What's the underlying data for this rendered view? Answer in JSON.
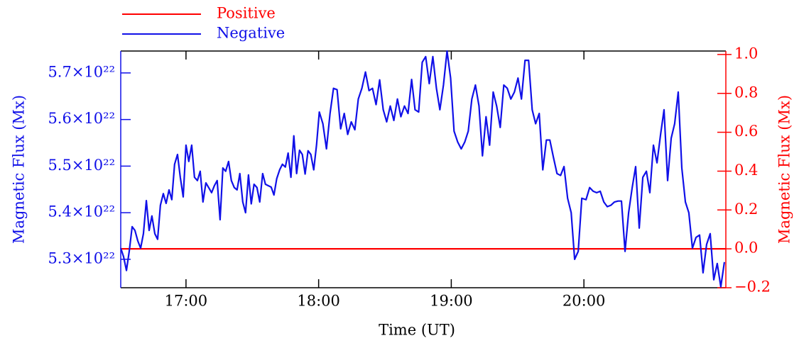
{
  "chart_data": {
    "type": "line",
    "x_label": "Time (UT)",
    "y_label": "Magnetic Flux (Mx)",
    "y2_label": "Magnetic Flux (Mx)",
    "xlim": [
      16.508,
      21.07
    ],
    "xticks": [
      {
        "value": 17,
        "label": "17:00"
      },
      {
        "value": 18,
        "label": "18:00"
      },
      {
        "value": 19,
        "label": "19:00"
      },
      {
        "value": 20,
        "label": "20:00"
      }
    ],
    "ylim": [
      5.239e+22,
      5.747e+22
    ],
    "yticks": [
      {
        "value": 5.3e+22,
        "label": "5.3×10²²"
      },
      {
        "value": 5.4e+22,
        "label": "5.4×10²²"
      },
      {
        "value": 5.5e+22,
        "label": "5.5×10²²"
      },
      {
        "value": 5.6e+22,
        "label": "5.6×10²²"
      },
      {
        "value": 5.7e+22,
        "label": "5.7×10²²"
      }
    ],
    "y2lim": [
      -0.2,
      1.018
    ],
    "y2ticks": [
      {
        "value": -0.2,
        "label": "−0.2"
      },
      {
        "value": 0,
        "label": "0.0"
      },
      {
        "value": 0.2,
        "label": "0.2"
      },
      {
        "value": 0.4,
        "label": "0.4"
      },
      {
        "value": 0.6,
        "label": "0.6"
      },
      {
        "value": 0.8,
        "label": "0.8"
      },
      {
        "value": 1,
        "label": "1.0"
      }
    ],
    "legend": "top-left",
    "x": [
      16.508,
      16.529,
      16.551,
      16.572,
      16.594,
      16.615,
      16.636,
      16.658,
      16.679,
      16.701,
      16.722,
      16.743,
      16.765,
      16.786,
      16.807,
      16.829,
      16.85,
      16.872,
      16.893,
      16.914,
      16.936,
      16.957,
      16.979,
      17.0,
      17.021,
      17.043,
      17.064,
      17.086,
      17.107,
      17.128,
      17.15,
      17.171,
      17.193,
      17.214,
      17.235,
      17.257,
      17.278,
      17.299,
      17.321,
      17.342,
      17.364,
      17.385,
      17.406,
      17.428,
      17.449,
      17.471,
      17.492,
      17.513,
      17.535,
      17.556,
      17.578,
      17.599,
      17.62,
      17.642,
      17.663,
      17.684,
      17.706,
      17.727,
      17.749,
      17.77,
      17.791,
      17.813,
      17.834,
      17.856,
      17.877,
      17.898,
      17.92,
      17.941,
      17.963,
      17.984,
      18.005,
      18.032,
      18.059,
      18.086,
      18.112,
      18.139,
      18.166,
      18.193,
      18.219,
      18.246,
      18.273,
      18.299,
      18.326,
      18.353,
      18.38,
      18.406,
      18.433,
      18.46,
      18.487,
      18.513,
      18.54,
      18.567,
      18.594,
      18.62,
      18.647,
      18.674,
      18.701,
      18.727,
      18.754,
      18.781,
      18.807,
      18.834,
      18.861,
      18.888,
      18.914,
      18.941,
      18.968,
      18.995,
      19.021,
      19.048,
      19.075,
      19.102,
      19.128,
      19.155,
      19.182,
      19.209,
      19.235,
      19.262,
      19.289,
      19.316,
      19.342,
      19.369,
      19.396,
      19.422,
      19.449,
      19.476,
      19.503,
      19.529,
      19.556,
      19.583,
      19.61,
      19.636,
      19.663,
      19.69,
      19.717,
      19.743,
      19.77,
      19.797,
      19.824,
      19.85,
      19.877,
      19.904,
      19.93,
      19.957,
      19.984,
      20.016,
      20.043,
      20.07,
      20.096,
      20.123,
      20.15,
      20.176,
      20.203,
      20.23,
      20.257,
      20.283,
      20.31,
      20.337,
      20.364,
      20.39,
      20.417,
      20.444,
      20.471,
      20.497,
      20.524,
      20.551,
      20.578,
      20.604,
      20.631,
      20.658,
      20.684,
      20.711,
      20.738,
      20.765,
      20.791,
      20.818,
      20.845,
      20.872,
      20.898,
      20.925,
      20.952,
      20.979,
      21.005,
      21.032,
      21.059
    ],
    "series": [
      {
        "name": "Positive",
        "color": "#ff0000",
        "axis": "y2",
        "x": [
          16.508,
          21.07
        ],
        "values": [
          0,
          0
        ]
      },
      {
        "name": "Negative",
        "color": "#1010e8",
        "values": [
          5.324e+22,
          5.306e+22,
          5.276e+22,
          5.317e+22,
          5.37e+22,
          5.362e+22,
          5.34e+22,
          5.324e+22,
          5.355e+22,
          5.426e+22,
          5.362e+22,
          5.393e+22,
          5.355e+22,
          5.343e+22,
          5.416e+22,
          5.441e+22,
          5.42e+22,
          5.449e+22,
          5.428e+22,
          5.504e+22,
          5.525e+22,
          5.476e+22,
          5.434e+22,
          5.545e+22,
          5.51e+22,
          5.545e+22,
          5.476e+22,
          5.469e+22,
          5.489e+22,
          5.423e+22,
          5.464e+22,
          5.454e+22,
          5.443e+22,
          5.458e+22,
          5.469e+22,
          5.385e+22,
          5.496e+22,
          5.489e+22,
          5.51e+22,
          5.469e+22,
          5.454e+22,
          5.449e+22,
          5.484e+22,
          5.423e+22,
          5.4e+22,
          5.481e+22,
          5.419e+22,
          5.461e+22,
          5.454e+22,
          5.423e+22,
          5.484e+22,
          5.461e+22,
          5.458e+22,
          5.455e+22,
          5.438e+22,
          5.473e+22,
          5.492e+22,
          5.504e+22,
          5.498e+22,
          5.528e+22,
          5.476e+22,
          5.565e+22,
          5.484e+22,
          5.534e+22,
          5.525e+22,
          5.483e+22,
          5.533e+22,
          5.525e+22,
          5.492e+22,
          5.545e+22,
          5.616e+22,
          5.591e+22,
          5.537e+22,
          5.613e+22,
          5.667e+22,
          5.664e+22,
          5.58e+22,
          5.613e+22,
          5.568e+22,
          5.595e+22,
          5.578e+22,
          5.644e+22,
          5.667e+22,
          5.702e+22,
          5.662e+22,
          5.667e+22,
          5.632e+22,
          5.685e+22,
          5.621e+22,
          5.595e+22,
          5.629e+22,
          5.598e+22,
          5.644e+22,
          5.606e+22,
          5.629e+22,
          5.613e+22,
          5.686e+22,
          5.621e+22,
          5.616e+22,
          5.723e+22,
          5.735e+22,
          5.677e+22,
          5.735e+22,
          5.667e+22,
          5.621e+22,
          5.674e+22,
          5.747e+22,
          5.689e+22,
          5.575e+22,
          5.552e+22,
          5.537e+22,
          5.552e+22,
          5.575e+22,
          5.644e+22,
          5.674e+22,
          5.629e+22,
          5.522e+22,
          5.606e+22,
          5.545e+22,
          5.659e+22,
          5.629e+22,
          5.583e+22,
          5.674e+22,
          5.667e+22,
          5.644e+22,
          5.659e+22,
          5.689e+22,
          5.644e+22,
          5.727e+22,
          5.727e+22,
          5.621e+22,
          5.591e+22,
          5.613e+22,
          5.492e+22,
          5.556e+22,
          5.556e+22,
          5.519e+22,
          5.484e+22,
          5.48e+22,
          5.499e+22,
          5.431e+22,
          5.4e+22,
          5.3e+22,
          5.317e+22,
          5.431e+22,
          5.428e+22,
          5.454e+22,
          5.446e+22,
          5.443e+22,
          5.446e+22,
          5.423e+22,
          5.413e+22,
          5.416e+22,
          5.423e+22,
          5.425e+22,
          5.425e+22,
          5.317e+22,
          5.4e+22,
          5.454e+22,
          5.499e+22,
          5.367e+22,
          5.476e+22,
          5.489e+22,
          5.443e+22,
          5.545e+22,
          5.507e+22,
          5.568e+22,
          5.621e+22,
          5.469e+22,
          5.56e+22,
          5.591e+22,
          5.659e+22,
          5.496e+22,
          5.423e+22,
          5.4e+22,
          5.324e+22,
          5.347e+22,
          5.352e+22,
          5.271e+22,
          5.332e+22,
          5.355e+22,
          5.256e+22,
          5.291e+22,
          5.241e+22,
          5.294e+22
        ]
      }
    ]
  }
}
